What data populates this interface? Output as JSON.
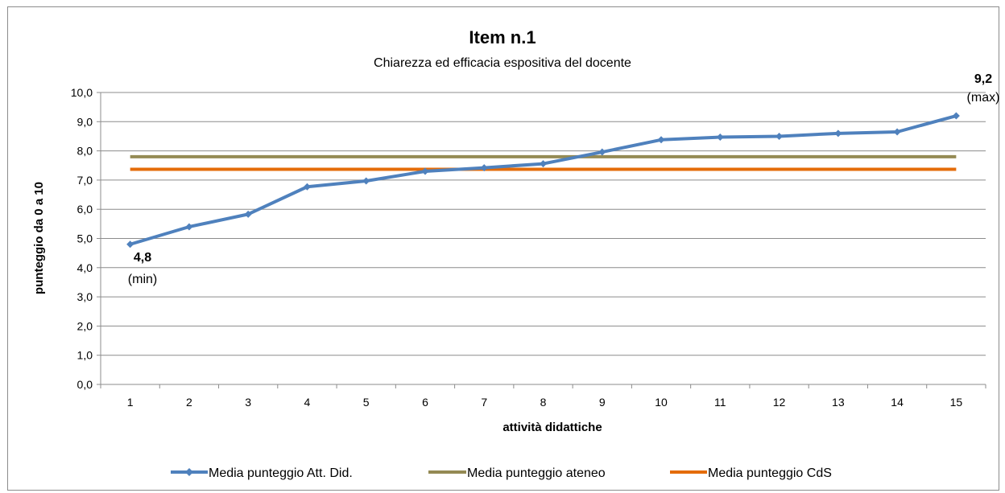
{
  "chart_data": {
    "type": "line",
    "title": "Item n.1",
    "subtitle": "Chiarezza ed efficacia espositiva del docente",
    "xlabel": "attività didattiche",
    "ylabel": "punteggio da 0 a 10",
    "categories": [
      "1",
      "2",
      "3",
      "4",
      "5",
      "6",
      "7",
      "8",
      "9",
      "10",
      "11",
      "12",
      "13",
      "14",
      "15"
    ],
    "ylim": [
      0,
      10
    ],
    "yticks": [
      "0,0",
      "1,0",
      "2,0",
      "3,0",
      "4,0",
      "5,0",
      "6,0",
      "7,0",
      "8,0",
      "9,0",
      "10,0"
    ],
    "grid": "horizontal",
    "legend_position": "bottom",
    "series": [
      {
        "name": "Media punteggio Att. Did.",
        "color": "#4f81bd",
        "marker": "diamond",
        "values": [
          4.8,
          5.4,
          5.83,
          6.77,
          6.97,
          7.3,
          7.42,
          7.56,
          7.96,
          8.38,
          8.47,
          8.5,
          8.6,
          8.65,
          9.2
        ]
      },
      {
        "name": "Media punteggio ateneo",
        "color": "#948a54",
        "marker": "none",
        "values": [
          7.8,
          7.8,
          7.8,
          7.8,
          7.8,
          7.8,
          7.8,
          7.8,
          7.8,
          7.8,
          7.8,
          7.8,
          7.8,
          7.8,
          7.8
        ]
      },
      {
        "name": "Media punteggio CdS",
        "color": "#e46c0a",
        "marker": "none",
        "values": [
          7.37,
          7.37,
          7.37,
          7.37,
          7.37,
          7.37,
          7.37,
          7.37,
          7.37,
          7.37,
          7.37,
          7.37,
          7.37,
          7.37,
          7.37
        ]
      }
    ],
    "annotations": {
      "min": {
        "value": "4,8",
        "tag": "(min)"
      },
      "max": {
        "value": "9,2",
        "tag": "(max)"
      }
    }
  }
}
